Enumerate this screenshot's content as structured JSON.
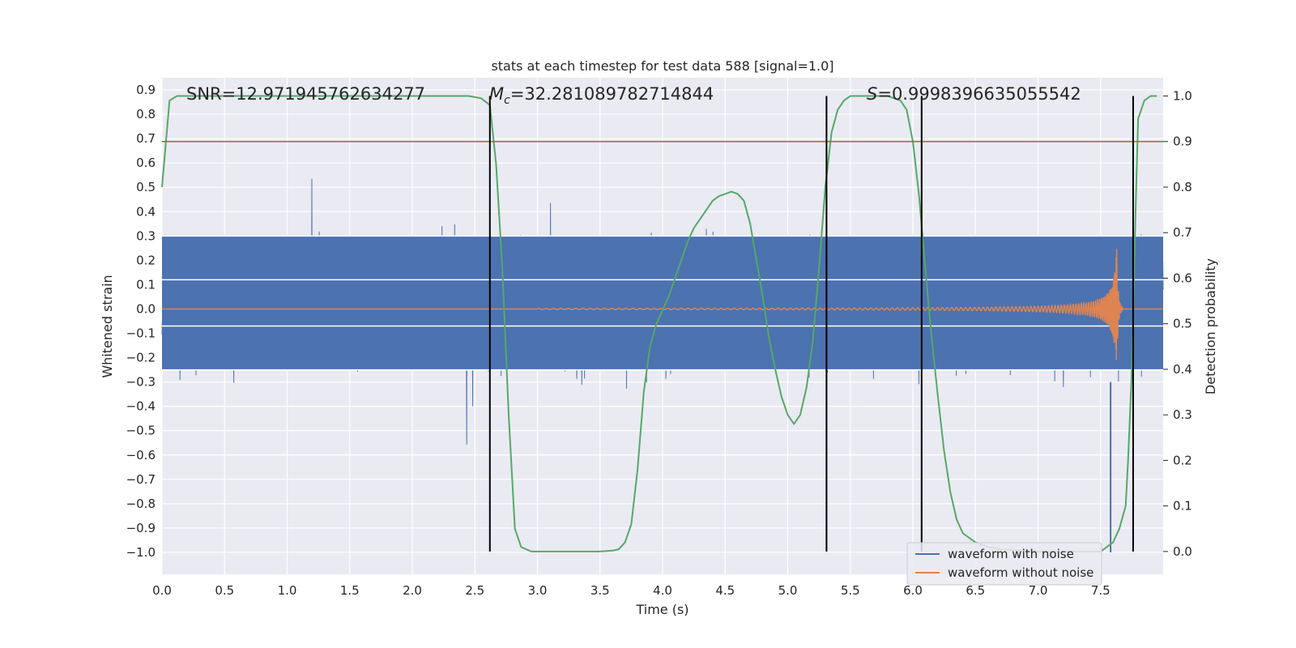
{
  "chart_data": {
    "type": "line",
    "title": "stats at each timestep for test data 588 [signal=1.0]",
    "xlabel": "Time (s)",
    "ylabel": "Whitened strain",
    "ylabel_right": "Detection probability",
    "xlim": [
      0.0,
      8.0
    ],
    "ylim": [
      -1.09,
      0.95
    ],
    "ylim_right": [
      -0.05,
      1.04
    ],
    "xticks": [
      "0.0",
      "0.5",
      "1.0",
      "1.5",
      "2.0",
      "2.5",
      "3.0",
      "3.5",
      "4.0",
      "4.5",
      "5.0",
      "5.5",
      "6.0",
      "6.5",
      "7.0",
      "7.5"
    ],
    "yticks": [
      "0.9",
      "0.8",
      "0.7",
      "0.6",
      "0.5",
      "0.4",
      "0.3",
      "0.2",
      "0.1",
      "0.0",
      "−0.1",
      "−0.2",
      "−0.3",
      "−0.4",
      "−0.5",
      "−0.6",
      "−0.7",
      "−0.8",
      "−0.9",
      "−1.0"
    ],
    "yticks_right": [
      "1.0",
      "0.9",
      "0.8",
      "0.7",
      "0.6",
      "0.5",
      "0.4",
      "0.3",
      "0.2",
      "0.1",
      "0.0"
    ],
    "grid": true,
    "legend": {
      "placement": "lower-right",
      "entries": [
        "waveform with noise",
        "waveform without noise"
      ]
    },
    "colors": {
      "noise": "#4c72b0",
      "clean": "#dd8452",
      "probability": "#55a868",
      "threshold": "#c44e52",
      "marker": "#000000",
      "background": "#eaeaf2"
    },
    "annotations": {
      "snr": "SNR=12.971945762634277",
      "mc_prefix": "M",
      "mc_sub": "c",
      "mc_value": "=32.281089782714844",
      "s_prefix": "S",
      "s_value": "=0.9998396635055542"
    },
    "threshold_y_right": 0.9,
    "vertical_markers_x": [
      2.62,
      5.31,
      6.07,
      7.76
    ],
    "white_hlines_y": [
      0.3,
      0.12,
      -0.07,
      -0.25
    ],
    "probability_series": {
      "name": "",
      "x": [
        0.0,
        0.06,
        0.12,
        0.18,
        0.5,
        1.0,
        1.5,
        2.0,
        2.45,
        2.55,
        2.62,
        2.67,
        2.72,
        2.77,
        2.82,
        2.87,
        2.95,
        3.1,
        3.3,
        3.5,
        3.6,
        3.65,
        3.7,
        3.75,
        3.8,
        3.85,
        3.9,
        3.95,
        4.0,
        4.05,
        4.1,
        4.15,
        4.2,
        4.25,
        4.3,
        4.35,
        4.4,
        4.45,
        4.5,
        4.55,
        4.6,
        4.65,
        4.7,
        4.75,
        4.8,
        4.85,
        4.9,
        4.95,
        5.0,
        5.05,
        5.1,
        5.15,
        5.2,
        5.25,
        5.3,
        5.35,
        5.4,
        5.45,
        5.5,
        5.6,
        5.7,
        5.8,
        5.9,
        5.95,
        6.0,
        6.05,
        6.1,
        6.15,
        6.2,
        6.25,
        6.3,
        6.35,
        6.4,
        6.5,
        6.6,
        6.7,
        7.0,
        7.3,
        7.5,
        7.6,
        7.65,
        7.7,
        7.72,
        7.75,
        7.78,
        7.8,
        7.85,
        7.9,
        7.95
      ],
      "y": [
        0.8,
        0.99,
        1.0,
        1.0,
        1.0,
        1.0,
        1.0,
        1.0,
        1.0,
        0.995,
        0.98,
        0.85,
        0.62,
        0.3,
        0.05,
        0.01,
        0.0,
        0.0,
        0.0,
        0.0,
        0.002,
        0.005,
        0.02,
        0.06,
        0.18,
        0.35,
        0.45,
        0.5,
        0.53,
        0.56,
        0.6,
        0.64,
        0.68,
        0.71,
        0.73,
        0.75,
        0.77,
        0.78,
        0.785,
        0.79,
        0.785,
        0.77,
        0.72,
        0.64,
        0.56,
        0.47,
        0.4,
        0.34,
        0.3,
        0.28,
        0.3,
        0.36,
        0.46,
        0.62,
        0.8,
        0.92,
        0.97,
        0.99,
        1.0,
        1.0,
        1.0,
        1.0,
        0.99,
        0.97,
        0.9,
        0.78,
        0.62,
        0.47,
        0.34,
        0.22,
        0.13,
        0.07,
        0.04,
        0.02,
        0.01,
        0.005,
        0.0,
        0.0,
        0.0,
        0.02,
        0.05,
        0.1,
        0.2,
        0.4,
        0.75,
        0.95,
        0.99,
        1.0,
        1.0
      ]
    }
  }
}
